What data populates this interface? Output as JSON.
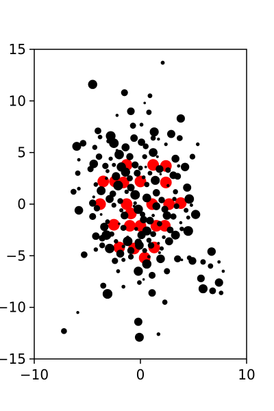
{
  "chart_data": {
    "type": "scatter",
    "title": "",
    "xlabel": "",
    "ylabel": "",
    "xlim": [
      -10,
      10
    ],
    "ylim": [
      -15,
      15
    ],
    "xticks": [
      -10,
      0,
      10
    ],
    "xtick_labels": [
      "−10",
      "0",
      "10"
    ],
    "yticks": [
      -15,
      -10,
      -5,
      0,
      5,
      10,
      15
    ],
    "ytick_labels": [
      "−15",
      "−10",
      "−5",
      "0",
      "5",
      "10",
      "15"
    ],
    "grid": false,
    "legend": "none",
    "series": [
      {
        "color": "#ff0000",
        "marker_size": "large",
        "points": [
          [
            -3.5,
            2.2
          ],
          [
            -2.4,
            2.2
          ],
          [
            -1.6,
            2.1
          ],
          [
            0.0,
            2.2
          ],
          [
            2.4,
            2.1
          ],
          [
            -3.8,
            0.0
          ],
          [
            -1.3,
            0.0
          ],
          [
            1.1,
            0.0
          ],
          [
            2.7,
            0.0
          ],
          [
            3.8,
            0.1
          ],
          [
            -2.5,
            -2.0
          ],
          [
            -1.0,
            -2.1
          ],
          [
            0.0,
            -2.1
          ],
          [
            1.5,
            -2.1
          ],
          [
            2.3,
            -2.1
          ],
          [
            -2.0,
            -4.2
          ],
          [
            -0.6,
            -4.3
          ],
          [
            1.3,
            -4.2
          ],
          [
            0.4,
            -5.2
          ],
          [
            -1.3,
            3.8
          ],
          [
            1.2,
            3.8
          ],
          [
            2.4,
            3.7
          ],
          [
            -0.9,
            -0.9
          ]
        ]
      },
      {
        "color": "#000000",
        "marker_size": "varied",
        "points": [
          [
            2.1,
            13.7
          ],
          [
            -4.5,
            11.6
          ],
          [
            -1.5,
            10.8
          ],
          [
            0.9,
            10.5
          ],
          [
            0.4,
            9.8
          ],
          [
            -0.9,
            9.0
          ],
          [
            0.8,
            8.9
          ],
          [
            -2.2,
            8.6
          ],
          [
            3.8,
            8.3
          ],
          [
            -0.7,
            7.6
          ],
          [
            0.1,
            7.7
          ],
          [
            1.3,
            7.0
          ],
          [
            -4.0,
            7.1
          ],
          [
            -3.8,
            6.5
          ],
          [
            -2.8,
            6.6
          ],
          [
            -0.6,
            6.4
          ],
          [
            1.2,
            6.4
          ],
          [
            1.7,
            6.3
          ],
          [
            2.9,
            6.8
          ],
          [
            3.7,
            6.4
          ],
          [
            5.4,
            5.8
          ],
          [
            -6.0,
            5.6
          ],
          [
            -5.4,
            5.9
          ],
          [
            -3.0,
            6.1
          ],
          [
            -2.5,
            5.9
          ],
          [
            0.1,
            6.0
          ],
          [
            -4.3,
            5.5
          ],
          [
            -2.2,
            5.2
          ],
          [
            -1.4,
            5.5
          ],
          [
            0.5,
            5.6
          ],
          [
            2.4,
            5.8
          ],
          [
            1.2,
            5.0
          ],
          [
            -3.9,
            4.6
          ],
          [
            -2.8,
            4.4
          ],
          [
            -2.0,
            4.8
          ],
          [
            -1.0,
            4.6
          ],
          [
            0.4,
            4.6
          ],
          [
            1.6,
            4.6
          ],
          [
            3.3,
            4.4
          ],
          [
            4.9,
            4.6
          ],
          [
            -5.8,
            4.3
          ],
          [
            -4.4,
            3.9
          ],
          [
            -3.3,
            3.7
          ],
          [
            -2.5,
            3.8
          ],
          [
            -1.8,
            3.6
          ],
          [
            -0.5,
            3.8
          ],
          [
            0.0,
            3.5
          ],
          [
            0.5,
            3.6
          ],
          [
            1.8,
            3.4
          ],
          [
            2.6,
            3.3
          ],
          [
            3.6,
            3.7
          ],
          [
            4.2,
            3.6
          ],
          [
            -4.7,
            3.4
          ],
          [
            -3.1,
            3.2
          ],
          [
            -1.4,
            3.1
          ],
          [
            -0.3,
            3.0
          ],
          [
            0.9,
            3.0
          ],
          [
            1.9,
            2.9
          ],
          [
            3.1,
            2.8
          ],
          [
            -5.9,
            3.0
          ],
          [
            -3.2,
            2.5
          ],
          [
            -2.3,
            2.7
          ],
          [
            -1.0,
            2.5
          ],
          [
            0.3,
            2.6
          ],
          [
            1.4,
            2.3
          ],
          [
            3.5,
            2.7
          ],
          [
            -4.2,
            1.9
          ],
          [
            -2.1,
            1.8
          ],
          [
            -0.9,
            1.6
          ],
          [
            0.6,
            1.9
          ],
          [
            2.6,
            1.8
          ],
          [
            4.4,
            1.6
          ],
          [
            -6.3,
            1.2
          ],
          [
            -5.8,
            1.5
          ],
          [
            -3.7,
            1.3
          ],
          [
            -2.6,
            1.0
          ],
          [
            -1.3,
            1.2
          ],
          [
            -0.5,
            0.9
          ],
          [
            1.5,
            1.1
          ],
          [
            3.3,
            1.2
          ],
          [
            -4.4,
            0.7
          ],
          [
            -2.9,
            0.5
          ],
          [
            -1.9,
            0.3
          ],
          [
            -0.5,
            0.1
          ],
          [
            0.6,
            0.6
          ],
          [
            2.0,
            0.4
          ],
          [
            3.2,
            0.5
          ],
          [
            4.6,
            0.5
          ],
          [
            -4.5,
            0.1
          ],
          [
            -2.5,
            -0.1
          ],
          [
            -0.6,
            -0.2
          ],
          [
            1.5,
            -0.2
          ],
          [
            3.4,
            -0.2
          ],
          [
            4.8,
            -0.1
          ],
          [
            -5.8,
            -0.6
          ],
          [
            -4.1,
            -0.4
          ],
          [
            -1.8,
            -0.6
          ],
          [
            -0.2,
            -0.5
          ],
          [
            2.3,
            -0.5
          ],
          [
            4.3,
            -0.6
          ],
          [
            -3.7,
            -1.0
          ],
          [
            -1.5,
            -1.1
          ],
          [
            0.2,
            -1.0
          ],
          [
            1.2,
            -1.1
          ],
          [
            2.5,
            -1.1
          ],
          [
            3.1,
            -1.2
          ],
          [
            4.5,
            -1.3
          ],
          [
            5.2,
            -1.0
          ],
          [
            -4.5,
            -1.2
          ],
          [
            -3.1,
            -1.7
          ],
          [
            -2.0,
            -1.9
          ],
          [
            0.9,
            -1.6
          ],
          [
            1.8,
            -1.9
          ],
          [
            3.8,
            -1.8
          ],
          [
            -3.4,
            -2.2
          ],
          [
            -1.6,
            -2.3
          ],
          [
            -0.4,
            -2.4
          ],
          [
            0.6,
            -2.6
          ],
          [
            2.8,
            -2.5
          ],
          [
            3.9,
            -2.4
          ],
          [
            4.5,
            -2.6
          ],
          [
            -4.2,
            -3.1
          ],
          [
            -2.7,
            -2.9
          ],
          [
            -1.2,
            -3.2
          ],
          [
            0.1,
            -3.0
          ],
          [
            1.2,
            -2.9
          ],
          [
            2.2,
            -3.2
          ],
          [
            3.3,
            -3.0
          ],
          [
            -3.6,
            -3.3
          ],
          [
            -2.3,
            -3.6
          ],
          [
            -1.2,
            -3.6
          ],
          [
            -0.2,
            -3.7
          ],
          [
            0.8,
            -3.5
          ],
          [
            1.7,
            -3.8
          ],
          [
            2.7,
            -3.6
          ],
          [
            -3.6,
            -4.0
          ],
          [
            -1.6,
            -4.1
          ],
          [
            -0.1,
            -4.0
          ],
          [
            1.0,
            -4.0
          ],
          [
            2.0,
            -4.3
          ],
          [
            -2.9,
            -4.3
          ],
          [
            -0.9,
            -4.5
          ],
          [
            0.4,
            -4.5
          ],
          [
            1.8,
            -4.7
          ],
          [
            -1.9,
            -4.8
          ],
          [
            -0.9,
            -5.1
          ],
          [
            0.8,
            -5.1
          ],
          [
            1.9,
            -5.3
          ],
          [
            -2.4,
            -5.5
          ],
          [
            -1.6,
            -5.4
          ],
          [
            0.6,
            -5.8
          ],
          [
            3.5,
            -5.3
          ],
          [
            4.6,
            -5.2
          ],
          [
            3.9,
            -5.4
          ],
          [
            4.9,
            -5.5
          ],
          [
            5.9,
            -5.6
          ],
          [
            7.4,
            -5.6
          ],
          [
            6.7,
            -4.6
          ],
          [
            2.5,
            -6.5
          ],
          [
            -2.1,
            -6.5
          ],
          [
            -0.2,
            -6.5
          ],
          [
            1.1,
            -6.9
          ],
          [
            -0.1,
            -7.6
          ],
          [
            0.3,
            -7.3
          ],
          [
            5.7,
            -7.2
          ],
          [
            6.6,
            -6.0
          ],
          [
            7.8,
            -6.5
          ],
          [
            7.4,
            -7.6
          ],
          [
            -3.5,
            -7.9
          ],
          [
            -1.6,
            -8.0
          ],
          [
            5.9,
            -8.2
          ],
          [
            6.8,
            -8.4
          ],
          [
            7.6,
            -8.6
          ],
          [
            -3.1,
            -8.7
          ],
          [
            1.1,
            -8.6
          ],
          [
            2.3,
            -9.5
          ],
          [
            -5.9,
            -10.5
          ],
          [
            -0.2,
            -11.4
          ],
          [
            -7.2,
            -12.3
          ],
          [
            1.7,
            -12.6
          ],
          [
            -0.1,
            -12.9
          ],
          [
            -5.3,
            -4.9
          ],
          [
            -4.2,
            -4.4
          ],
          [
            -3.2,
            -3.0
          ],
          [
            0.3,
            -1.5
          ]
        ]
      }
    ]
  }
}
